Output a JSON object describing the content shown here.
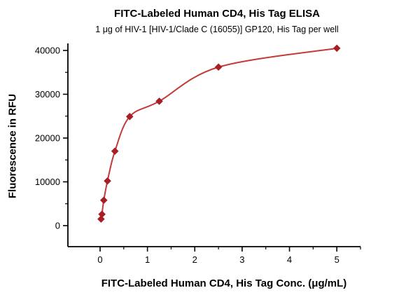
{
  "chart_data": {
    "type": "scatter",
    "title": "FITC-Labeled Human CD4, His Tag ELISA",
    "subtitle": "1 μg of HIV-1 [HIV-1/Clade C (16055)] GP120, His Tag per well",
    "xlabel": "FITC-Labeled Human CD4, His Tag Conc. (μg/mL)",
    "ylabel": "Fluorescence in RFU",
    "x": [
      0.02,
      0.039,
      0.078,
      0.156,
      0.313,
      0.625,
      1.25,
      2.5,
      5
    ],
    "y": [
      1500,
      2600,
      5800,
      10200,
      17000,
      24900,
      28400,
      36200,
      40500
    ],
    "x_ticks": [
      0,
      1,
      2,
      3,
      4,
      5
    ],
    "y_ticks": [
      0,
      10000,
      20000,
      30000,
      40000
    ],
    "x_minor_step": 0.5,
    "y_minor_step": 5000,
    "xlim": [
      -0.68,
      5.5
    ],
    "ylim": [
      -4800,
      41600
    ],
    "grid": false,
    "legend": "none",
    "line_color": "#C23B38",
    "marker_color": "#A81E24",
    "axis_color": "#000000"
  }
}
